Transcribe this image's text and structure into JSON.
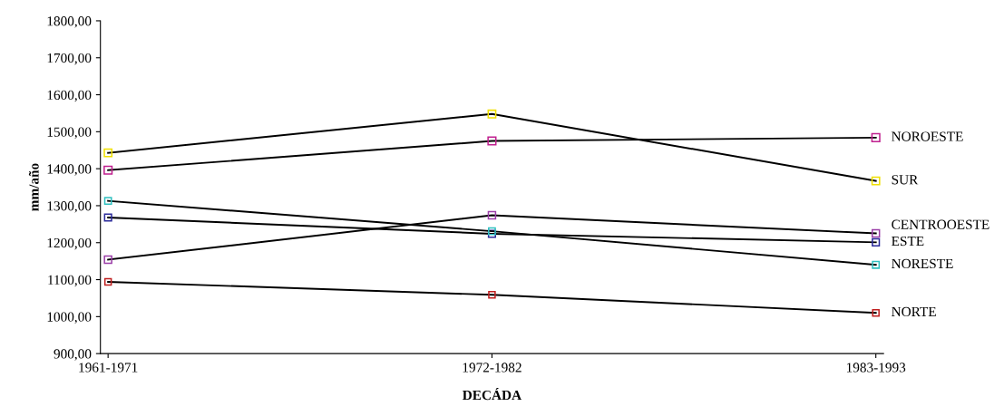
{
  "chart_data": {
    "type": "line",
    "xlabel": "DECÁDA",
    "ylabel": "mm/año",
    "categories": [
      "1961-1971",
      "1972-1982",
      "1983-1993"
    ],
    "series": [
      {
        "name": "NOROESTE",
        "color": "#c0208f",
        "values": [
          1396,
          1475,
          1484
        ]
      },
      {
        "name": "SUR",
        "color": "#f0e000",
        "values": [
          1443,
          1548,
          1367
        ]
      },
      {
        "name": "CENTROOESTE",
        "color": "#9b3fa8",
        "values": [
          1154,
          1274,
          1225
        ]
      },
      {
        "name": "ESTE",
        "color": "#2a2a9a",
        "values": [
          1268,
          1224,
          1201
        ]
      },
      {
        "name": "NORESTE",
        "color": "#30c0c0",
        "values": [
          1313,
          1231,
          1140
        ]
      },
      {
        "name": "NORTE",
        "color": "#c02020",
        "values": [
          1094,
          1059,
          1010
        ]
      }
    ],
    "ylim": [
      900,
      1800
    ],
    "yticks": [
      {
        "value": 900,
        "label": "900,00"
      },
      {
        "value": 1000,
        "label": "1000,00"
      },
      {
        "value": 1100,
        "label": "1100,00"
      },
      {
        "value": 1200,
        "label": "1200,00"
      },
      {
        "value": 1300,
        "label": "1300,00"
      },
      {
        "value": 1400,
        "label": "1400,00"
      },
      {
        "value": 1500,
        "label": "1500,00"
      },
      {
        "value": 1600,
        "label": "1600,00"
      },
      {
        "value": 1700,
        "label": "1700,00"
      },
      {
        "value": 1800,
        "label": "1800,00"
      }
    ],
    "grid": false,
    "legend": false,
    "marker": "square",
    "line_style": "solid"
  }
}
